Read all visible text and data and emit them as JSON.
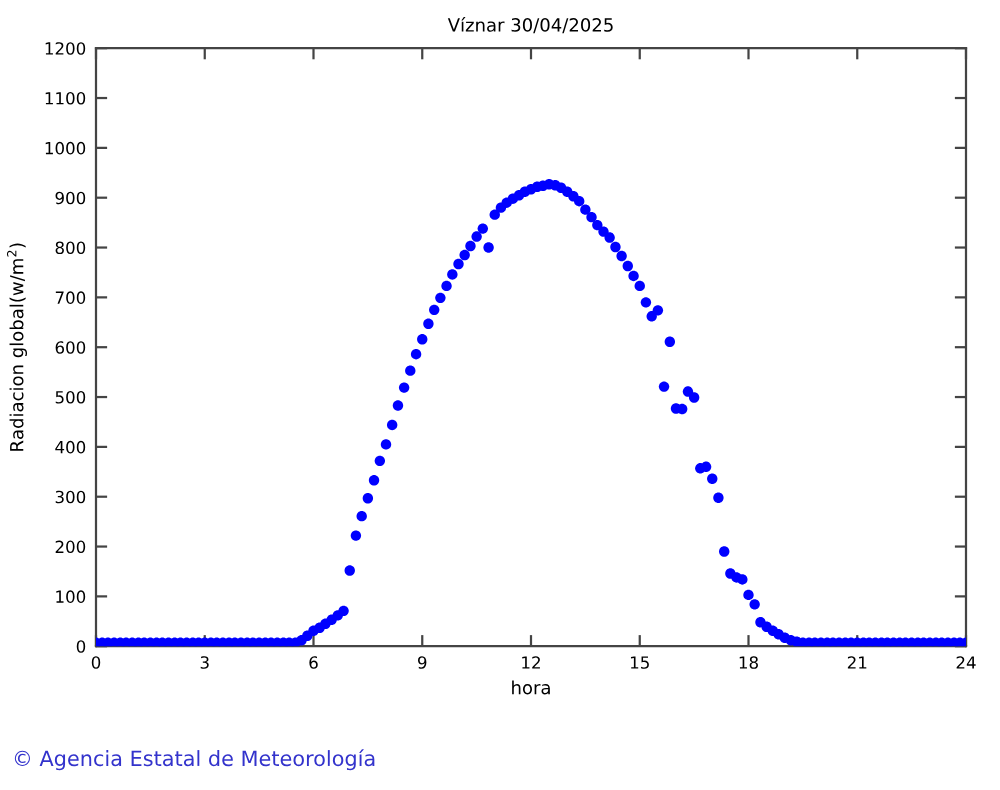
{
  "chart_data": {
    "type": "scatter",
    "title": "Víznar 30/04/2025",
    "xlabel": "hora",
    "ylabel": "Radiacion global(w/m$^{2}$)",
    "x": [
      0,
      0.17,
      0.33,
      0.5,
      0.67,
      0.83,
      1,
      1.17,
      1.33,
      1.5,
      1.67,
      1.83,
      2,
      2.17,
      2.33,
      2.5,
      2.67,
      2.83,
      3,
      3.17,
      3.33,
      3.5,
      3.67,
      3.83,
      4,
      4.17,
      4.33,
      4.5,
      4.67,
      4.83,
      5,
      5.17,
      5.33,
      5.5,
      5.67,
      5.83,
      6,
      6.17,
      6.33,
      6.5,
      6.67,
      6.83,
      7,
      7.17,
      7.33,
      7.5,
      7.67,
      7.83,
      8,
      8.17,
      8.33,
      8.5,
      8.67,
      8.83,
      9,
      9.17,
      9.33,
      9.5,
      9.67,
      9.83,
      10,
      10.17,
      10.33,
      10.5,
      10.67,
      10.83,
      11,
      11.17,
      11.33,
      11.5,
      11.67,
      11.83,
      12,
      12.17,
      12.33,
      12.5,
      12.67,
      12.83,
      13,
      13.17,
      13.33,
      13.5,
      13.67,
      13.83,
      14,
      14.17,
      14.33,
      14.5,
      14.67,
      14.83,
      15,
      15.17,
      15.33,
      15.5,
      15.67,
      15.83,
      16,
      16.17,
      16.33,
      16.5,
      16.67,
      16.83,
      17,
      17.17,
      17.33,
      17.5,
      17.67,
      17.83,
      18,
      18.17,
      18.33,
      18.5,
      18.67,
      18.83,
      19,
      19.17,
      19.33,
      19.5,
      19.67,
      19.83,
      20,
      20.17,
      20.33,
      20.5,
      20.67,
      20.83,
      21,
      21.17,
      21.33,
      21.5,
      21.67,
      21.83,
      22,
      22.17,
      22.33,
      22.5,
      22.67,
      22.83,
      23,
      23.17,
      23.33,
      23.5,
      23.67,
      23.83,
      24
    ],
    "series": [
      {
        "color": "#0000ff",
        "values": [
          7,
          7,
          7,
          7,
          7,
          7,
          7,
          7,
          7,
          7,
          7,
          7,
          7,
          7,
          7,
          7,
          7,
          7,
          7,
          7,
          7,
          7,
          7,
          7,
          7,
          7,
          7,
          7,
          7,
          7,
          7,
          7,
          7,
          7,
          12,
          21,
          31,
          37,
          45,
          53,
          62,
          71,
          152,
          222,
          261,
          297,
          333,
          372,
          405,
          444,
          483,
          519,
          553,
          586,
          616,
          647,
          675,
          699,
          723,
          746,
          767,
          785,
          803,
          822,
          838,
          800,
          866,
          880,
          890,
          898,
          905,
          912,
          917,
          922,
          924,
          927,
          925,
          920,
          912,
          903,
          893,
          876,
          861,
          845,
          832,
          820,
          801,
          783,
          763,
          743,
          723,
          690,
          662,
          674,
          521,
          611,
          477,
          476,
          511,
          499,
          357,
          360,
          336,
          298,
          190,
          146,
          138,
          134,
          103,
          84,
          48,
          39,
          31,
          24,
          17,
          12,
          9,
          7,
          7,
          7,
          7,
          7,
          7,
          7,
          7,
          7,
          7,
          7,
          7,
          7,
          7,
          7,
          7,
          7,
          7,
          7,
          7,
          7,
          7,
          7,
          7,
          7,
          7,
          7,
          7
        ]
      }
    ],
    "xlim": [
      0,
      24
    ],
    "xticks": [
      0,
      3,
      6,
      9,
      12,
      15,
      18,
      21,
      24
    ],
    "ylim": [
      0,
      1200
    ],
    "yticks": [
      0,
      100,
      200,
      300,
      400,
      500,
      600,
      700,
      800,
      900,
      1000,
      1100,
      1200
    ],
    "marker": "circle",
    "grid": false,
    "legend": false,
    "annotations": [
      "© Agencia Estatal de Meteorología"
    ]
  }
}
